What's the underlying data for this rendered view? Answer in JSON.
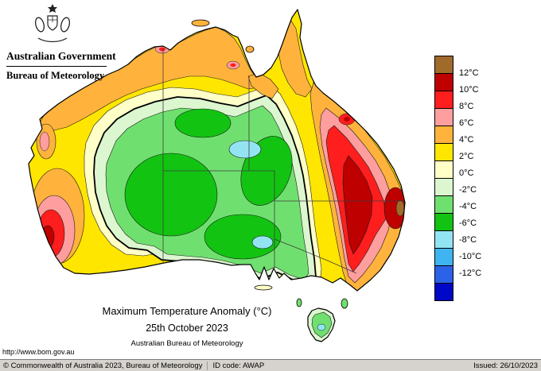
{
  "header": {
    "gov": "Australian Government",
    "dept": "Bureau of Meteorology"
  },
  "map": {
    "title": "Maximum Temperature Anomaly (°C)",
    "date": "25th October 2023",
    "org": "Australian Bureau of Meteorology",
    "url": "http://www.bom.gov.au"
  },
  "legend": {
    "unit": "°C",
    "labels": [
      "12°C",
      "10°C",
      "8°C",
      "6°C",
      "4°C",
      "2°C",
      "0°C",
      "-2°C",
      "-4°C",
      "-6°C",
      "-8°C",
      "-10°C",
      "-12°C"
    ],
    "colors": [
      "#a06a2a",
      "#be0000",
      "#ff1e1e",
      "#ff9e9e",
      "#ffb33c",
      "#ffe600",
      "#ffffc8",
      "#dcf6d0",
      "#6fe06f",
      "#12c312",
      "#93e4f2",
      "#3fb4f0",
      "#2a62e8",
      "#0008c8"
    ]
  },
  "statusbar": {
    "copyright": "© Commonwealth of Australia 2023, Bureau of Meteorology",
    "id": "ID code: AWAP",
    "issued": "Issued: 26/10/2023"
  }
}
